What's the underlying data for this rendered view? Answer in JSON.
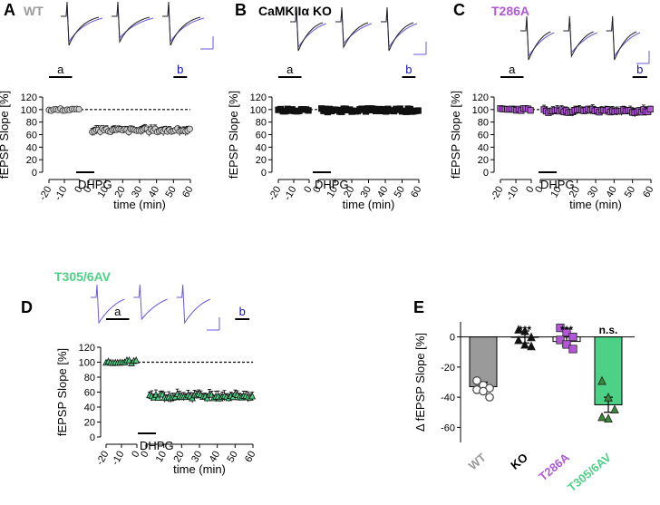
{
  "colors": {
    "wt": "#9a9a9a",
    "ko": "#000000",
    "t286a": "#b357d8",
    "t305": "#4cd186",
    "trace_before": "#222222",
    "trace_after": "#6a5ae0",
    "bar_b_label": "#1010c8"
  },
  "panels": {
    "A": {
      "letter": "A",
      "genotype": "WT"
    },
    "B": {
      "letter": "B",
      "genotype": "CaMKIIα  KO"
    },
    "C": {
      "letter": "C",
      "genotype": "T286A"
    },
    "D": {
      "letter": "D",
      "genotype": "T305/6AV"
    },
    "E": {
      "letter": "E"
    }
  },
  "common": {
    "ylabel": "fEPSP Slope [%]",
    "xlabel": "time (min)",
    "drug": "DHPG",
    "baseline_label": "a",
    "late_label": "b"
  },
  "chart_data": [
    {
      "panel": "A",
      "type": "scatter",
      "ylim": [
        0,
        120
      ],
      "yticks": [
        0,
        20,
        40,
        60,
        80,
        100,
        120
      ],
      "pre_ticks": [
        -20,
        -10,
        0
      ],
      "post_ticks": [
        0,
        10,
        20,
        30,
        40,
        50,
        60
      ],
      "reference_line": 100,
      "drug_window": [
        0,
        10
      ],
      "baseline": {
        "x": [
          -20,
          0
        ],
        "mean": 100,
        "sem": 3
      },
      "post": {
        "x": [
          0,
          60
        ],
        "mean": 67,
        "sem": 6
      },
      "series": [
        {
          "name": "WT",
          "marker": "open-circle"
        }
      ]
    },
    {
      "panel": "B",
      "type": "scatter",
      "ylim": [
        0,
        120
      ],
      "yticks": [
        0,
        20,
        40,
        60,
        80,
        100,
        120
      ],
      "pre_ticks": [
        -20,
        -10,
        0
      ],
      "post_ticks": [
        0,
        10,
        20,
        30,
        40,
        50,
        60
      ],
      "reference_line": 100,
      "drug_window": [
        0,
        10
      ],
      "baseline": {
        "x": [
          -20,
          0
        ],
        "mean": 99,
        "sem": 3
      },
      "post": {
        "x": [
          0,
          60
        ],
        "mean": 99,
        "sem": 4
      },
      "series": [
        {
          "name": "CaMKIIα KO",
          "marker": "filled-square"
        }
      ]
    },
    {
      "panel": "C",
      "type": "scatter",
      "ylim": [
        0,
        120
      ],
      "yticks": [
        0,
        20,
        40,
        60,
        80,
        100,
        120
      ],
      "pre_ticks": [
        -20,
        -10,
        0
      ],
      "post_ticks": [
        0,
        10,
        20,
        30,
        40,
        50,
        60
      ],
      "reference_line": 100,
      "drug_window": [
        0,
        10
      ],
      "baseline": {
        "x": [
          -20,
          0
        ],
        "mean": 100,
        "sem": 4
      },
      "post": {
        "x": [
          0,
          60
        ],
        "mean": 98,
        "sem": 6
      },
      "series": [
        {
          "name": "T286A",
          "marker": "filled-square"
        }
      ]
    },
    {
      "panel": "D",
      "type": "scatter",
      "ylim": [
        0,
        120
      ],
      "yticks": [
        0,
        20,
        40,
        60,
        80,
        100,
        120
      ],
      "pre_ticks": [
        -20,
        -10,
        0
      ],
      "post_ticks": [
        0,
        10,
        20,
        30,
        40,
        50,
        60
      ],
      "reference_line": 100,
      "drug_window": [
        0,
        10
      ],
      "baseline": {
        "x": [
          -20,
          0
        ],
        "mean": 101,
        "sem": 4
      },
      "post": {
        "x": [
          0,
          60
        ],
        "mean": 55,
        "sem": 6
      },
      "series": [
        {
          "name": "T305/6AV",
          "marker": "filled-triangle"
        }
      ]
    },
    {
      "panel": "E",
      "type": "bar",
      "ylabel": "Δ fEPSP Slope [%]",
      "ylim": [
        -70,
        10
      ],
      "yticks": [
        0,
        -20,
        -40,
        -60
      ],
      "categories": [
        "WT",
        "KO",
        "T286A",
        "T305/6AV"
      ],
      "values": [
        -33,
        0,
        -3,
        -45
      ],
      "sem": [
        3,
        4,
        3,
        5
      ],
      "significance": [
        "",
        "***",
        "***",
        "n.s."
      ],
      "points": [
        [
          -29,
          -32,
          -34,
          -35,
          -36,
          -40
        ],
        [
          5,
          4,
          0,
          -2,
          -5,
          -6
        ],
        [
          6,
          3,
          0,
          -2,
          -5,
          -8
        ],
        [
          -29,
          -40,
          -48,
          -53,
          -54
        ]
      ]
    }
  ]
}
